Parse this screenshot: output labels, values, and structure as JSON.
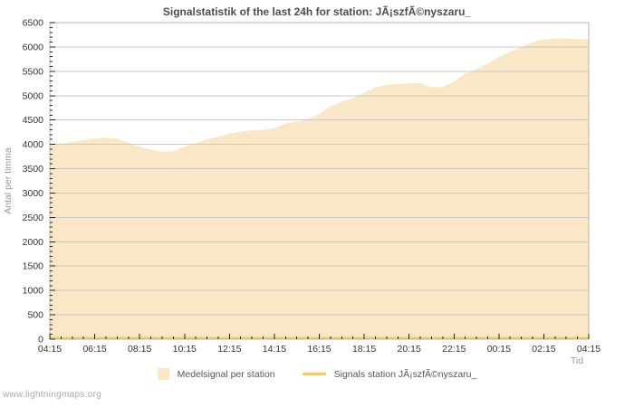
{
  "watermark": "www.lightningmaps.org",
  "legend": {
    "items": [
      {
        "label": "Medelsignal per station",
        "swatch": "area",
        "color": "#FAE7C5"
      },
      {
        "label": "Signals station JÃ¡szfÃ©nyszaru_",
        "swatch": "line",
        "color": "#F2CC66"
      }
    ]
  },
  "chart_data": {
    "type": "area",
    "title": "Signalstatistik of the last 24h for station: JÃ¡szfÃ©nyszaru_",
    "xlabel": "Tid",
    "ylabel": "Antal per timma",
    "ylim": [
      0,
      6500
    ],
    "ytick_step": 500,
    "y_minor_step": 100,
    "grid": "horizontal",
    "legend_position": "bottom",
    "xtick_labels": [
      "04:15",
      "06:15",
      "08:15",
      "10:15",
      "12:15",
      "14:15",
      "16:15",
      "18:15",
      "20:15",
      "22:15",
      "00:15",
      "02:15",
      "04:15"
    ],
    "x": [
      "04:15",
      "04:45",
      "05:15",
      "05:45",
      "06:15",
      "06:45",
      "07:15",
      "07:45",
      "08:15",
      "08:45",
      "09:15",
      "09:45",
      "10:15",
      "10:45",
      "11:15",
      "11:45",
      "12:15",
      "12:45",
      "13:15",
      "13:45",
      "14:15",
      "14:45",
      "15:15",
      "15:45",
      "16:15",
      "16:45",
      "17:15",
      "17:45",
      "18:15",
      "18:45",
      "19:15",
      "19:45",
      "20:15",
      "20:45",
      "21:15",
      "21:45",
      "22:15",
      "22:45",
      "23:15",
      "23:45",
      "00:15",
      "00:45",
      "01:15",
      "01:45",
      "02:15",
      "02:45",
      "03:15",
      "03:45",
      "04:15"
    ],
    "series": [
      {
        "name": "Medelsignal per station",
        "type": "area",
        "color": "#FAE7C5",
        "values": [
          3980,
          4010,
          4050,
          4090,
          4120,
          4140,
          4120,
          4030,
          3950,
          3890,
          3850,
          3860,
          3950,
          4030,
          4100,
          4160,
          4220,
          4260,
          4290,
          4300,
          4330,
          4430,
          4460,
          4520,
          4620,
          4780,
          4880,
          4950,
          5060,
          5170,
          5220,
          5240,
          5250,
          5260,
          5170,
          5180,
          5290,
          5450,
          5550,
          5660,
          5790,
          5890,
          6000,
          6100,
          6150,
          6170,
          6180,
          6160,
          6150
        ]
      },
      {
        "name": "Signals station JÃ¡szfÃ©nyszaru_",
        "type": "line",
        "color": "#F2CC66",
        "constant_value": 0
      }
    ],
    "colors": {
      "grid": "#C9C9C9",
      "frame": "#B3B3B3",
      "tick": "#222222",
      "axis_text": "#333333",
      "muted_text": "#999999",
      "title_text": "#4D4D4D",
      "background": "#FFFFFF"
    }
  }
}
